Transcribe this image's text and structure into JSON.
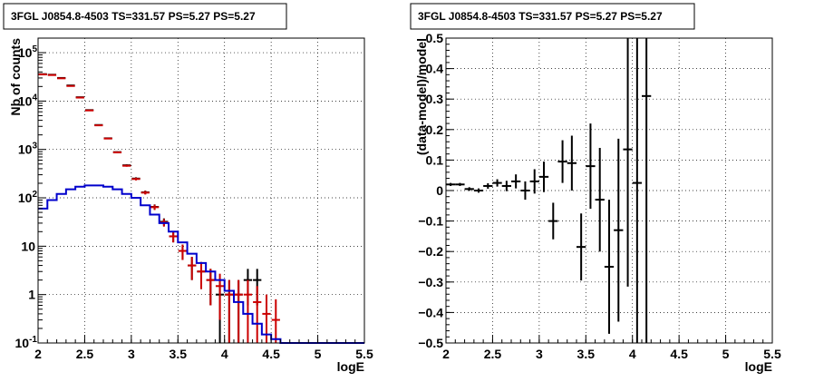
{
  "chart_data": [
    {
      "type": "histogram",
      "title": "3FGL J0854.8-4503 TS=331.57 PS=5.27 PS=5.27",
      "xlabel": "logE",
      "ylabel": "Nb of counts",
      "xlim": [
        2,
        5.5
      ],
      "ylim": [
        0.1,
        200000
      ],
      "yscale": "log",
      "grid": true,
      "x_ticks": [
        "2",
        "2.5",
        "3",
        "3.5",
        "4",
        "4.5",
        "5",
        "5.5"
      ],
      "y_ticks": [
        {
          "value": 0.1,
          "mantissa": "10",
          "exponent": "-1"
        },
        {
          "value": 1,
          "mantissa": "1",
          "exponent": ""
        },
        {
          "value": 10,
          "mantissa": "10",
          "exponent": ""
        },
        {
          "value": 100,
          "mantissa": "10",
          "exponent": "2"
        },
        {
          "value": 1000,
          "mantissa": "10",
          "exponent": "3"
        },
        {
          "value": 10000,
          "mantissa": "10",
          "exponent": "4"
        },
        {
          "value": 100000,
          "mantissa": "10",
          "exponent": "5"
        }
      ],
      "series": [
        {
          "color": "#000000",
          "style": "points",
          "x": [
            2.05,
            2.15,
            2.25,
            2.35,
            2.45,
            2.55,
            2.65,
            2.75,
            2.85,
            2.95,
            3.05,
            3.15,
            3.25,
            3.35,
            3.45,
            3.55,
            3.65,
            3.75,
            3.85,
            3.95,
            4.05,
            4.15,
            4.25,
            4.35
          ],
          "y": [
            36000,
            35000,
            30000,
            21000,
            12000,
            6500,
            3200,
            1700,
            880,
            470,
            250,
            130,
            65,
            32,
            16,
            8,
            4,
            3,
            2,
            1,
            1,
            1,
            2,
            2
          ],
          "yerr_low": [
            190,
            187,
            173,
            145,
            110,
            80,
            57,
            41,
            30,
            22,
            16,
            11,
            8,
            5.6,
            4,
            2.8,
            2,
            1.7,
            1.4,
            1,
            1,
            1,
            1.4,
            1.4
          ],
          "yerr_high": [
            190,
            187,
            173,
            145,
            110,
            80,
            57,
            41,
            30,
            22,
            16,
            11,
            8,
            5.6,
            4,
            2.8,
            2,
            1.7,
            1.4,
            1,
            1,
            1,
            1.4,
            1.4
          ]
        },
        {
          "color": "#cc0000",
          "style": "points",
          "x": [
            2.05,
            2.15,
            2.25,
            2.35,
            2.45,
            2.55,
            2.65,
            2.75,
            2.85,
            2.95,
            3.05,
            3.15,
            3.25,
            3.35,
            3.45,
            3.55,
            3.65,
            3.75,
            3.85,
            3.95,
            4.05,
            4.15,
            4.25,
            4.35,
            4.45,
            4.55
          ],
          "y": [
            35500,
            34500,
            29500,
            20500,
            11800,
            6400,
            3150,
            1680,
            870,
            460,
            245,
            128,
            64,
            31,
            16,
            8,
            4,
            3,
            2,
            1.5,
            1,
            1,
            1,
            0.7,
            0.4,
            0.3
          ],
          "yerr_low": [
            188,
            186,
            172,
            143,
            109,
            80,
            56,
            41,
            29,
            21,
            16,
            11,
            8,
            5.6,
            4,
            2.8,
            2,
            1.7,
            1.4,
            1.2,
            1,
            1,
            1,
            0.6,
            0.35,
            0.25
          ],
          "yerr_high": [
            188,
            186,
            172,
            143,
            109,
            80,
            56,
            41,
            29,
            21,
            16,
            11,
            8,
            5.6,
            4,
            2.8,
            2,
            1.7,
            1.4,
            1.2,
            1,
            1,
            1,
            0.8,
            0.6,
            0.5
          ]
        },
        {
          "color": "#0000cc",
          "style": "step",
          "bins": [
            2.0,
            2.1,
            2.2,
            2.3,
            2.4,
            2.5,
            2.6,
            2.7,
            2.8,
            2.9,
            3.0,
            3.1,
            3.2,
            3.3,
            3.4,
            3.5,
            3.6,
            3.7,
            3.8,
            3.9,
            4.0,
            4.1,
            4.2,
            4.3,
            4.4,
            4.5,
            4.6,
            4.7,
            4.8,
            4.9,
            5.0,
            5.1,
            5.2,
            5.3,
            5.4,
            5.5
          ],
          "values": [
            60,
            90,
            120,
            150,
            170,
            180,
            180,
            170,
            150,
            120,
            100,
            70,
            45,
            30,
            20,
            12,
            7,
            4.5,
            3,
            2,
            1.2,
            0.7,
            0.4,
            0.25,
            0.15,
            0.12,
            0.1,
            0.1,
            0.1,
            0.1,
            0.1,
            0.1,
            0.1,
            0.1,
            0.1
          ]
        }
      ]
    },
    {
      "type": "scatter",
      "title": "3FGL J0854.8-4503 TS=331.57 PS=5.27 PS=5.27",
      "xlabel": "logE",
      "ylabel": "(data-model)/model",
      "xlim": [
        2,
        5.5
      ],
      "ylim": [
        -0.5,
        0.5
      ],
      "grid": true,
      "x_ticks": [
        "2",
        "2.5",
        "3",
        "3.5",
        "4",
        "4.5",
        "5",
        "5.5"
      ],
      "y_ticks": [
        "−0.5",
        "−0.4",
        "−0.3",
        "−0.2",
        "−0.1",
        "0",
        "0.1",
        "0.2",
        "0.3",
        "0.4",
        "0.5"
      ],
      "y_tick_values": [
        -0.5,
        -0.4,
        -0.3,
        -0.2,
        -0.1,
        0,
        0.1,
        0.2,
        0.3,
        0.4,
        0.5
      ],
      "series": [
        {
          "color": "#000000",
          "x": [
            2.05,
            2.15,
            2.25,
            2.35,
            2.45,
            2.55,
            2.65,
            2.75,
            2.85,
            2.95,
            3.05,
            3.15,
            3.25,
            3.35,
            3.45,
            3.55,
            3.65,
            3.75,
            3.85,
            3.95,
            4.05,
            4.15
          ],
          "y": [
            0.02,
            0.02,
            0.005,
            0.0,
            0.015,
            0.025,
            0.015,
            0.03,
            0.0,
            0.03,
            0.045,
            -0.1,
            0.095,
            0.09,
            -0.185,
            0.08,
            -0.03,
            -0.25,
            -0.13,
            0.135,
            0.025,
            0.31
          ],
          "yerr": [
            0.005,
            0.005,
            0.006,
            0.007,
            0.009,
            0.012,
            0.017,
            0.023,
            0.03,
            0.04,
            0.05,
            0.06,
            0.07,
            0.09,
            0.11,
            0.14,
            0.17,
            0.22,
            0.3,
            0.45,
            0.7,
            0.9
          ],
          "xerr": 0.05
        }
      ]
    }
  ]
}
